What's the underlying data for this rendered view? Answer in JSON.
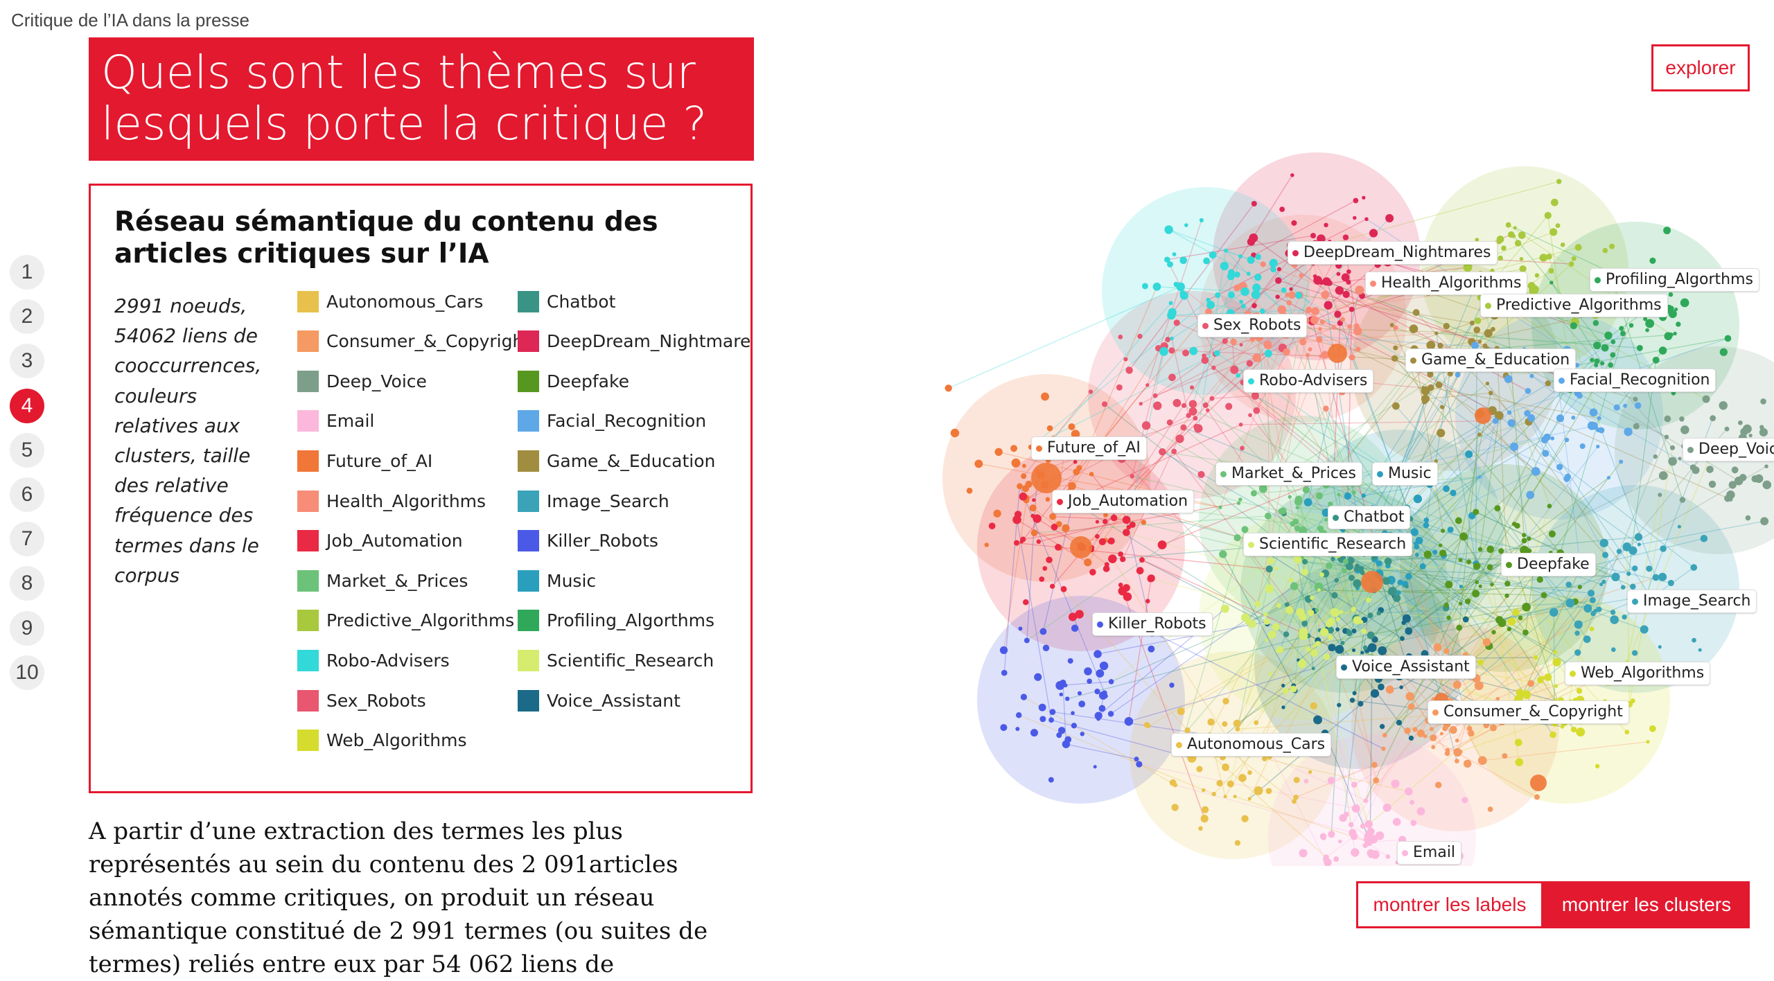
{
  "page": {
    "title": "Critique de l’IA dans la presse",
    "heading_line1": "Quels sont les thèmes sur",
    "heading_line2": "lesquels porte la critique ?"
  },
  "legend": {
    "title": "Réseau sémantique du contenu des articles critiques sur l’IA",
    "description": "2991 noeuds, 54062 liens de cooccurrences, couleurs relatives aux clusters, taille des relative fréquence des termes dans le corpus",
    "items": [
      {
        "label": "Autonomous_Cars",
        "color": "#e8c14c"
      },
      {
        "label": "Chatbot",
        "color": "#3a9486"
      },
      {
        "label": "Consumer_&_Copyright",
        "color": "#f59a62"
      },
      {
        "label": "DeepDream_Nightmare",
        "color": "#dd2755"
      },
      {
        "label": "Deep_Voice",
        "color": "#7d9f8a"
      },
      {
        "label": "Deepfake",
        "color": "#56981f"
      },
      {
        "label": "Email",
        "color": "#fcb8dc"
      },
      {
        "label": "Facial_Recognition",
        "color": "#5ea8e8"
      },
      {
        "label": "Future_of_AI",
        "color": "#f07737"
      },
      {
        "label": "Game_&_Education",
        "color": "#a08d40"
      },
      {
        "label": "Health_Algorithms",
        "color": "#f78d77"
      },
      {
        "label": "Image_Search",
        "color": "#3aa3b8"
      },
      {
        "label": "Job_Automation",
        "color": "#ea2a44"
      },
      {
        "label": "Killer_Robots",
        "color": "#4a5ae6"
      },
      {
        "label": "Market_&_Prices",
        "color": "#6cc279"
      },
      {
        "label": "Music",
        "color": "#2a9fbd"
      },
      {
        "label": "Predictive_Algorithms",
        "color": "#a8c93e"
      },
      {
        "label": "Profiling_Algorthms",
        "color": "#2fa85a"
      },
      {
        "label": "Robo-Advisers",
        "color": "#33d8d8"
      },
      {
        "label": "Scientific_Research",
        "color": "#d6ec6e"
      },
      {
        "label": "Sex_Robots",
        "color": "#e8566f"
      },
      {
        "label": "Voice_Assistant",
        "color": "#1a6a88"
      },
      {
        "label": "Web_Algorithms",
        "color": "#d6dc2e"
      }
    ]
  },
  "steps": [
    "1",
    "2",
    "3",
    "4",
    "5",
    "6",
    "7",
    "8",
    "9",
    "10"
  ],
  "active_step": "4",
  "body_text": "A partir d’une extraction des termes les plus représentés au sein du contenu des 2 091articles annotés comme critiques, on produit un réseau sémantique constitué de 2 991 termes (ou suites de termes) reliés entre eux par 54 062 liens de",
  "buttons": {
    "explore": "explorer",
    "show_labels": "montrer les labels",
    "show_clusters": "montrer les clusters"
  },
  "network_labels": [
    {
      "label": "DeepDream_Nightmares",
      "color": "#dd2755"
    },
    {
      "label": "Health_Algorithms",
      "color": "#f78d77"
    },
    {
      "label": "Profiling_Algorthms",
      "color": "#2fa85a"
    },
    {
      "label": "Predictive_Algorithms",
      "color": "#a8c93e"
    },
    {
      "label": "Sex_Robots",
      "color": "#e8566f"
    },
    {
      "label": "Game_&_Education",
      "color": "#a08d40"
    },
    {
      "label": "Robo-Advisers",
      "color": "#33d8d8"
    },
    {
      "label": "Facial_Recognition",
      "color": "#5ea8e8"
    },
    {
      "label": "Future_of_AI",
      "color": "#f07737"
    },
    {
      "label": "Deep_Voic",
      "color": "#7d9f8a"
    },
    {
      "label": "Market_&_Prices",
      "color": "#6cc279"
    },
    {
      "label": "Music",
      "color": "#2a9fbd"
    },
    {
      "label": "Job_Automation",
      "color": "#ea2a44"
    },
    {
      "label": "Chatbot",
      "color": "#3a9486"
    },
    {
      "label": "Scientific_Research",
      "color": "#d6ec6e"
    },
    {
      "label": "Deepfake",
      "color": "#56981f"
    },
    {
      "label": "Image_Search",
      "color": "#3aa3b8"
    },
    {
      "label": "Killer_Robots",
      "color": "#4a5ae6"
    },
    {
      "label": "Voice_Assistant",
      "color": "#1a6a88"
    },
    {
      "label": "Web_Algorithms",
      "color": "#d6dc2e"
    },
    {
      "label": "Consumer_&_Copyright",
      "color": "#f59a62"
    },
    {
      "label": "Autonomous_Cars",
      "color": "#e8c14c"
    },
    {
      "label": "Email",
      "color": "#fcb8dc"
    }
  ]
}
